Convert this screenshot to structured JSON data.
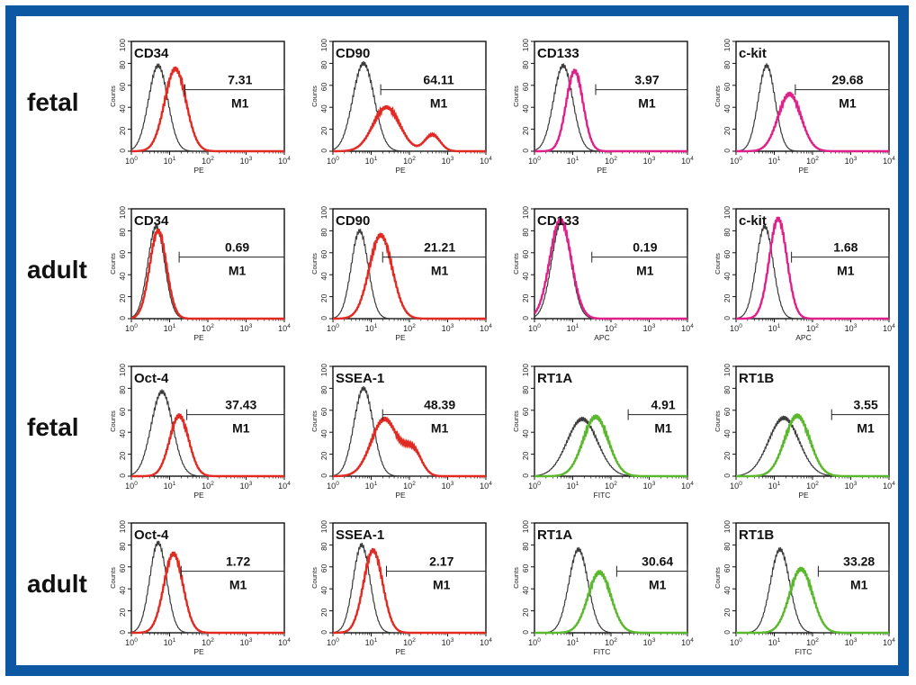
{
  "colors": {
    "frame": "#0d58a3",
    "control": "#3a3a3a",
    "pe": "#e02a22",
    "apc": "#e0208a",
    "fitc": "#5ab82c"
  },
  "axis": {
    "ylabel": "Counts",
    "yticks": [
      "0",
      "20",
      "40",
      "60",
      "80",
      "100"
    ],
    "xticks": [
      "10^0",
      "10^1",
      "10^2",
      "10^3",
      "10^4"
    ],
    "ymax": 100
  },
  "rows": [
    {
      "label": "fetal"
    },
    {
      "label": "adult"
    },
    {
      "label": "fetal"
    },
    {
      "label": "adult"
    }
  ],
  "chart_data": [
    {
      "type": "area",
      "marker": "CD34",
      "channel": "PE",
      "color": "pe",
      "gate_label": "M1",
      "percent": "7.31",
      "gate_start": 1.4,
      "ctrl": {
        "mu": 0.7,
        "sd": 0.25,
        "peak": 78
      },
      "sample": {
        "mu": 1.15,
        "sd": 0.28,
        "peak": 75
      }
    },
    {
      "type": "area",
      "marker": "CD90",
      "channel": "PE",
      "color": "pe",
      "gate_label": "M1",
      "percent": "64.11",
      "gate_start": 1.25,
      "ctrl": {
        "mu": 0.8,
        "sd": 0.28,
        "peak": 80
      },
      "sample": {
        "mu": 1.4,
        "sd": 0.35,
        "peak": 40
      },
      "sample2": {
        "mu": 2.6,
        "sd": 0.2,
        "peak": 15
      }
    },
    {
      "type": "area",
      "marker": "CD133",
      "channel": "PE",
      "color": "apc",
      "gate_label": "M1",
      "percent": "3.97",
      "gate_start": 1.6,
      "ctrl": {
        "mu": 0.75,
        "sd": 0.25,
        "peak": 78
      },
      "sample": {
        "mu": 1.05,
        "sd": 0.22,
        "peak": 73
      }
    },
    {
      "type": "area",
      "marker": "c-kit",
      "channel": "PE",
      "color": "apc",
      "gate_label": "M1",
      "percent": "29.68",
      "gate_start": 1.55,
      "ctrl": {
        "mu": 0.8,
        "sd": 0.22,
        "peak": 78
      },
      "sample": {
        "mu": 1.4,
        "sd": 0.3,
        "peak": 52
      }
    },
    {
      "type": "area",
      "marker": "CD34",
      "channel": "PE",
      "color": "pe",
      "gate_label": "M1",
      "percent": "0.69",
      "gate_start": 1.25,
      "ctrl": {
        "mu": 0.65,
        "sd": 0.22,
        "peak": 84
      },
      "sample": {
        "mu": 0.7,
        "sd": 0.22,
        "peak": 80
      }
    },
    {
      "type": "area",
      "marker": "CD90",
      "channel": "PE",
      "color": "pe",
      "gate_label": "M1",
      "percent": "21.21",
      "gate_start": 1.3,
      "ctrl": {
        "mu": 0.7,
        "sd": 0.22,
        "peak": 80
      },
      "sample": {
        "mu": 1.25,
        "sd": 0.3,
        "peak": 76
      }
    },
    {
      "type": "area",
      "marker": "CD133",
      "channel": "APC",
      "color": "apc",
      "gate_label": "M1",
      "percent": "0.19",
      "gate_start": 1.5,
      "ctrl": {
        "mu": 0.7,
        "sd": 0.25,
        "peak": 88
      },
      "sample": {
        "mu": 0.68,
        "sd": 0.28,
        "peak": 90
      }
    },
    {
      "type": "area",
      "marker": "c-kit",
      "channel": "APC",
      "color": "apc",
      "gate_label": "M1",
      "percent": "1.68",
      "gate_start": 1.45,
      "ctrl": {
        "mu": 0.75,
        "sd": 0.22,
        "peak": 84
      },
      "sample": {
        "mu": 1.1,
        "sd": 0.23,
        "peak": 91
      }
    },
    {
      "type": "area",
      "marker": "Oct-4",
      "channel": "PE",
      "color": "pe",
      "gate_label": "M1",
      "percent": "37.43",
      "gate_start": 1.45,
      "ctrl": {
        "mu": 0.8,
        "sd": 0.28,
        "peak": 77
      },
      "sample": {
        "mu": 1.25,
        "sd": 0.25,
        "peak": 55
      }
    },
    {
      "type": "area",
      "marker": "SSEA-1",
      "channel": "PE",
      "color": "pe",
      "gate_label": "M1",
      "percent": "48.39",
      "gate_start": 1.3,
      "ctrl": {
        "mu": 0.8,
        "sd": 0.25,
        "peak": 80
      },
      "sample": {
        "mu": 1.35,
        "sd": 0.35,
        "peak": 52
      },
      "sample2": {
        "mu": 2.1,
        "sd": 0.22,
        "peak": 22
      }
    },
    {
      "type": "area",
      "marker": "RT1A",
      "channel": "FITC",
      "color": "fitc",
      "gate_label": "M1",
      "percent": "4.91",
      "gate_start": 2.45,
      "ctrl": {
        "mu": 1.25,
        "sd": 0.4,
        "peak": 52
      },
      "sample": {
        "mu": 1.6,
        "sd": 0.33,
        "peak": 54
      }
    },
    {
      "type": "area",
      "marker": "RT1B",
      "channel": "PE",
      "color": "fitc",
      "gate_label": "M1",
      "percent": "3.55",
      "gate_start": 2.5,
      "ctrl": {
        "mu": 1.25,
        "sd": 0.4,
        "peak": 53
      },
      "sample": {
        "mu": 1.6,
        "sd": 0.33,
        "peak": 55
      }
    },
    {
      "type": "area",
      "marker": "Oct-4",
      "channel": "PE",
      "color": "pe",
      "gate_label": "M1",
      "percent": "1.72",
      "gate_start": 1.3,
      "ctrl": {
        "mu": 0.7,
        "sd": 0.22,
        "peak": 82
      },
      "sample": {
        "mu": 1.1,
        "sd": 0.25,
        "peak": 72
      }
    },
    {
      "type": "area",
      "marker": "SSEA-1",
      "channel": "PE",
      "color": "pe",
      "gate_label": "M1",
      "percent": "2.17",
      "gate_start": 1.4,
      "ctrl": {
        "mu": 0.75,
        "sd": 0.22,
        "peak": 80
      },
      "sample": {
        "mu": 1.05,
        "sd": 0.25,
        "peak": 75
      }
    },
    {
      "type": "area",
      "marker": "RT1A",
      "channel": "FITC",
      "color": "fitc",
      "gate_label": "M1",
      "percent": "30.64",
      "gate_start": 2.15,
      "ctrl": {
        "mu": 1.15,
        "sd": 0.25,
        "peak": 76
      },
      "sample": {
        "mu": 1.7,
        "sd": 0.3,
        "peak": 55
      }
    },
    {
      "type": "area",
      "marker": "RT1B",
      "channel": "FITC",
      "color": "fitc",
      "gate_label": "M1",
      "percent": "33.28",
      "gate_start": 2.15,
      "ctrl": {
        "mu": 1.15,
        "sd": 0.25,
        "peak": 76
      },
      "sample": {
        "mu": 1.7,
        "sd": 0.3,
        "peak": 58
      }
    }
  ]
}
